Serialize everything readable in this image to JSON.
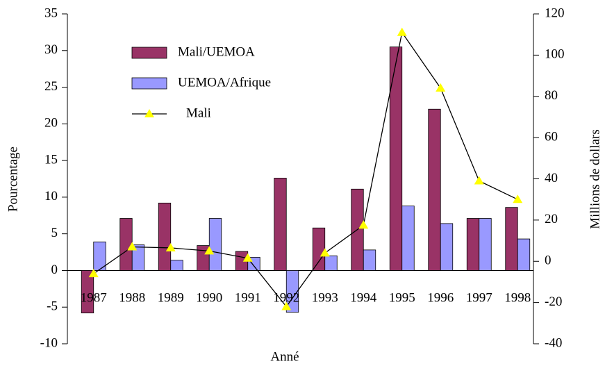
{
  "chart_data": {
    "type": "bar",
    "x_label": "Anné",
    "y_label": "Pourcentage",
    "y2_label": "Millions de dollars",
    "categories": [
      "1987",
      "1988",
      "1989",
      "1990",
      "1991",
      "1992",
      "1993",
      "1994",
      "1995",
      "1996",
      "1997",
      "1998"
    ],
    "series": [
      {
        "name": "Mali/UEMOA",
        "type": "bar",
        "color": "#993366",
        "values": [
          -5.8,
          7.1,
          9.2,
          3.4,
          2.6,
          12.6,
          5.8,
          11.1,
          30.5,
          22.0,
          7.1,
          8.6
        ]
      },
      {
        "name": "UEMOA/Afrique",
        "type": "bar",
        "color": "#9999ff",
        "values": [
          3.9,
          3.5,
          1.4,
          7.1,
          1.8,
          -5.7,
          2.0,
          2.8,
          8.8,
          6.4,
          7.1,
          4.3
        ]
      },
      {
        "name": "Mali",
        "type": "line",
        "axis": "y2",
        "color": "#000000",
        "marker_color": "#ffff00",
        "values": [
          -6,
          7,
          6.5,
          5,
          1.5,
          -22,
          4,
          17.5,
          111,
          84,
          39,
          30
        ]
      }
    ],
    "ylim": [
      -10,
      35
    ],
    "yticks": [
      -10,
      -5,
      0,
      5,
      10,
      15,
      20,
      25,
      30,
      35
    ],
    "y2lim": [
      -40,
      120
    ],
    "y2ticks": [
      -40,
      -20,
      0,
      20,
      40,
      60,
      80,
      100,
      120
    ],
    "grid": false
  }
}
